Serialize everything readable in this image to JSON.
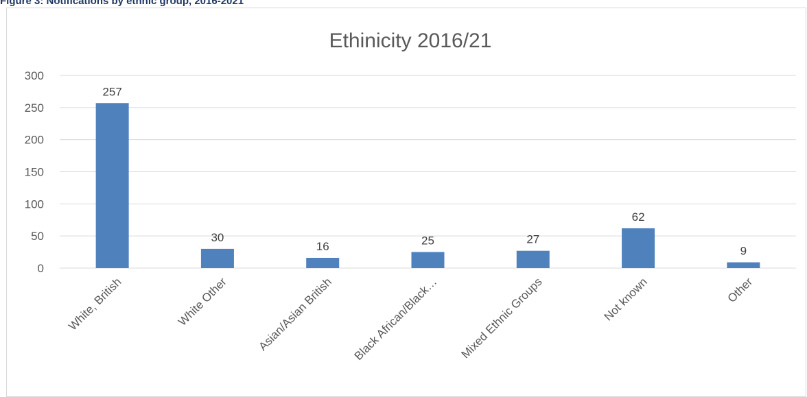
{
  "figure_caption": "Figure 3: Notifications by ethnic group, 2016-2021",
  "colors": {
    "bar": "#4f81bd",
    "gridline": "#d9d9d9",
    "axis_text": "#595959"
  },
  "chart_data": {
    "type": "bar",
    "title": "Ethinicity 2016/21",
    "xlabel": "",
    "ylabel": "",
    "categories": [
      "White, British",
      "White Other",
      "Asian/Asian British",
      "Black African/Black…",
      "Mixed Ethnic Groups",
      "Not known",
      "Other"
    ],
    "values": [
      257,
      30,
      16,
      25,
      27,
      62,
      9
    ],
    "data_labels": true,
    "ylim": [
      0,
      300
    ],
    "yticks": [
      0,
      50,
      100,
      150,
      200,
      250,
      300
    ],
    "grid": true,
    "legend": "none"
  }
}
